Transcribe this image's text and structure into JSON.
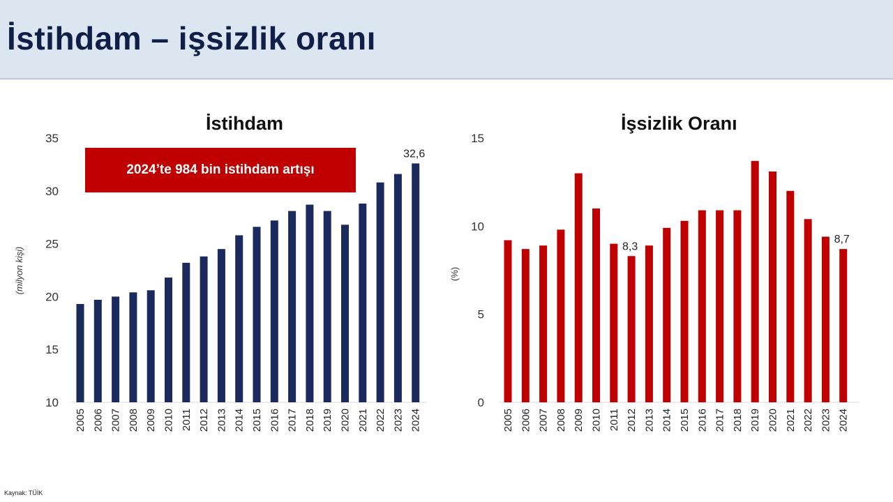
{
  "header": {
    "title": "İstihdam – işsizlik oranı"
  },
  "source": "Kaynak: TÜİK",
  "colors": {
    "employment": "#1b2a5c",
    "unemployment": "#c00000",
    "header_bg": "#dce6f1"
  },
  "callout": "2024’te 984 bin istihdam artışı",
  "chart_data": [
    {
      "id": "employment",
      "type": "bar",
      "title": "İstihdam",
      "ylabel": "(milyon kişi)",
      "xlabel": "",
      "ylim": [
        10,
        35
      ],
      "yticks": [
        10,
        15,
        20,
        25,
        30,
        35
      ],
      "grid": false,
      "categories": [
        "2005",
        "2006",
        "2007",
        "2008",
        "2009",
        "2010",
        "2011",
        "2012",
        "2013",
        "2014",
        "2015",
        "2016",
        "2017",
        "2018",
        "2019",
        "2020",
        "2021",
        "2022",
        "2023",
        "2024"
      ],
      "values": [
        19.3,
        19.7,
        20.0,
        20.4,
        20.6,
        21.8,
        23.2,
        23.8,
        24.5,
        25.8,
        26.6,
        27.2,
        28.1,
        28.7,
        28.1,
        26.8,
        28.8,
        30.8,
        31.6,
        32.6
      ],
      "data_labels": [
        {
          "index": 19,
          "text": "32,6"
        }
      ],
      "color": "#1b2a5c"
    },
    {
      "id": "unemployment",
      "type": "bar",
      "title": "İşsizlik Oranı",
      "ylabel": "(%)",
      "xlabel": "",
      "ylim": [
        0,
        15
      ],
      "yticks": [
        0,
        5,
        10,
        15
      ],
      "grid": false,
      "categories": [
        "2005",
        "2006",
        "2007",
        "2008",
        "2009",
        "2010",
        "2011",
        "2012",
        "2013",
        "2014",
        "2015",
        "2016",
        "2017",
        "2018",
        "2019",
        "2020",
        "2021",
        "2022",
        "2023",
        "2024"
      ],
      "values": [
        9.2,
        8.7,
        8.9,
        9.8,
        13.0,
        11.0,
        9.0,
        8.3,
        8.9,
        9.9,
        10.3,
        10.9,
        10.9,
        10.9,
        13.7,
        13.1,
        12.0,
        10.4,
        9.4,
        8.7
      ],
      "data_labels": [
        {
          "index": 7,
          "text": "8,3"
        },
        {
          "index": 19,
          "text": "8,7"
        }
      ],
      "color": "#c00000"
    }
  ]
}
